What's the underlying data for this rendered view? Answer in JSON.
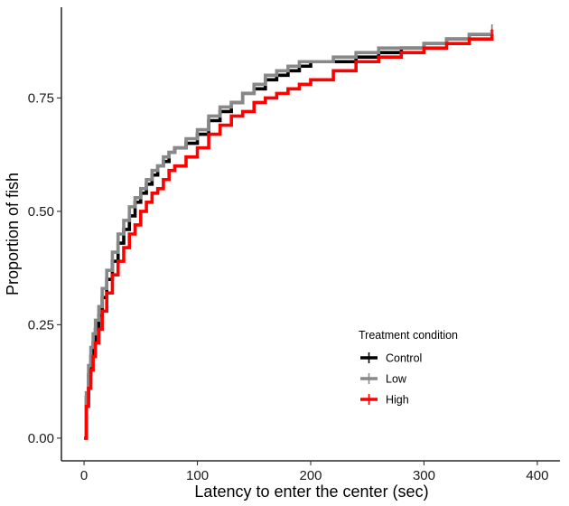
{
  "chart_data": {
    "type": "line",
    "subtype": "step",
    "title": "",
    "xlabel": "Latency to enter the center (sec)",
    "ylabel": "Proportion of fish",
    "xlim": [
      -20,
      420
    ],
    "ylim": [
      -0.05,
      0.95
    ],
    "xticks": [
      0,
      100,
      200,
      300,
      400
    ],
    "xtick_labels": [
      "0",
      "100",
      "200",
      "300",
      "400"
    ],
    "yticks": [
      0,
      0.25,
      0.5,
      0.75
    ],
    "ytick_labels": [
      "0.00",
      "0.25",
      "0.50",
      "0.75"
    ],
    "grid": false,
    "legend": {
      "title": "Treatment condition",
      "position": "inside-bottom-right"
    },
    "series": [
      {
        "name": "Control",
        "color": "#000000",
        "x": [
          0,
          2,
          4,
          6,
          8,
          10,
          13,
          16,
          20,
          25,
          30,
          35,
          40,
          45,
          50,
          55,
          60,
          65,
          70,
          75,
          80,
          90,
          100,
          110,
          120,
          130,
          140,
          150,
          160,
          170,
          180,
          190,
          200,
          220,
          240,
          260,
          280,
          300,
          320,
          340,
          360
        ],
        "y": [
          0.0,
          0.09,
          0.14,
          0.18,
          0.21,
          0.24,
          0.27,
          0.31,
          0.35,
          0.39,
          0.43,
          0.46,
          0.49,
          0.52,
          0.54,
          0.56,
          0.58,
          0.6,
          0.61,
          0.63,
          0.64,
          0.65,
          0.67,
          0.7,
          0.72,
          0.74,
          0.76,
          0.77,
          0.79,
          0.8,
          0.81,
          0.82,
          0.83,
          0.83,
          0.84,
          0.85,
          0.86,
          0.87,
          0.88,
          0.89,
          0.9
        ]
      },
      {
        "name": "Low",
        "color": "#888888",
        "x": [
          0,
          2,
          4,
          6,
          8,
          10,
          13,
          16,
          20,
          25,
          30,
          35,
          40,
          45,
          50,
          55,
          60,
          65,
          70,
          75,
          80,
          90,
          100,
          110,
          120,
          130,
          140,
          150,
          160,
          170,
          180,
          190,
          200,
          220,
          240,
          260,
          280,
          300,
          320,
          340,
          360
        ],
        "y": [
          0.0,
          0.1,
          0.16,
          0.2,
          0.23,
          0.26,
          0.29,
          0.33,
          0.37,
          0.41,
          0.45,
          0.48,
          0.51,
          0.53,
          0.55,
          0.57,
          0.59,
          0.6,
          0.62,
          0.63,
          0.64,
          0.66,
          0.68,
          0.71,
          0.73,
          0.74,
          0.76,
          0.78,
          0.8,
          0.81,
          0.82,
          0.83,
          0.83,
          0.84,
          0.85,
          0.86,
          0.86,
          0.87,
          0.88,
          0.89,
          0.9
        ]
      },
      {
        "name": "High",
        "color": "#ff0000",
        "x": [
          0,
          2,
          4,
          6,
          8,
          10,
          13,
          16,
          20,
          25,
          30,
          35,
          40,
          45,
          50,
          55,
          60,
          65,
          70,
          75,
          80,
          90,
          100,
          110,
          120,
          130,
          140,
          150,
          160,
          170,
          180,
          190,
          200,
          220,
          240,
          260,
          280,
          300,
          320,
          340,
          360
        ],
        "y": [
          0.0,
          0.07,
          0.11,
          0.15,
          0.18,
          0.21,
          0.24,
          0.28,
          0.32,
          0.36,
          0.39,
          0.42,
          0.45,
          0.47,
          0.5,
          0.52,
          0.54,
          0.55,
          0.57,
          0.59,
          0.6,
          0.62,
          0.64,
          0.67,
          0.69,
          0.71,
          0.72,
          0.74,
          0.75,
          0.76,
          0.77,
          0.78,
          0.79,
          0.81,
          0.83,
          0.84,
          0.85,
          0.86,
          0.87,
          0.88,
          0.89
        ]
      }
    ]
  }
}
